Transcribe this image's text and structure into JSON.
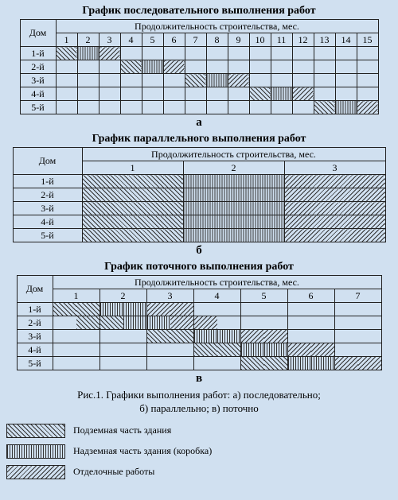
{
  "patternStyles": {
    "p1": "diagonal-45",
    "p2": "vertical",
    "p3": "diagonal-135"
  },
  "colors": {
    "background": "#d0e0f0",
    "border": "#222222",
    "pattern": "#333333"
  },
  "typography": {
    "family": "Times New Roman",
    "titleSize": 14,
    "bodySize": 12,
    "captionSize": 13
  },
  "chartA": {
    "title": "График последовательного выполнения работ",
    "rowHeader": "Дом",
    "durHeader": "Продолжительность строительства, мес.",
    "months": [
      "1",
      "2",
      "3",
      "4",
      "5",
      "6",
      "7",
      "8",
      "9",
      "10",
      "11",
      "12",
      "13",
      "14",
      "15"
    ],
    "rows": [
      "1-й",
      "2-й",
      "3-й",
      "4-й",
      "5-й"
    ],
    "cells": [
      [
        "p1",
        "p2",
        "p3",
        "",
        "",
        "",
        "",
        "",
        "",
        "",
        "",
        "",
        "",
        "",
        ""
      ],
      [
        "",
        "",
        "",
        "p1",
        "p2",
        "p3",
        "",
        "",
        "",
        "",
        "",
        "",
        "",
        "",
        ""
      ],
      [
        "",
        "",
        "",
        "",
        "",
        "",
        "p1",
        "p2",
        "p3",
        "",
        "",
        "",
        "",
        "",
        ""
      ],
      [
        "",
        "",
        "",
        "",
        "",
        "",
        "",
        "",
        "",
        "p1",
        "p2",
        "p3",
        "",
        "",
        ""
      ],
      [
        "",
        "",
        "",
        "",
        "",
        "",
        "",
        "",
        "",
        "",
        "",
        "",
        "p1",
        "p2",
        "p3"
      ]
    ],
    "letter": "а"
  },
  "chartB": {
    "title": "График параллельного выполнения работ",
    "rowHeader": "Дом",
    "durHeader": "Продолжительность строительства, мес.",
    "months": [
      "1",
      "2",
      "3"
    ],
    "rows": [
      "1-й",
      "2-й",
      "3-й",
      "4-й",
      "5-й"
    ],
    "cells": [
      [
        "p1",
        "p2",
        "p3"
      ],
      [
        "p1",
        "p2",
        "p3"
      ],
      [
        "p1",
        "p2",
        "p3"
      ],
      [
        "p1",
        "p2",
        "p3"
      ],
      [
        "p1",
        "p2",
        "p3"
      ]
    ],
    "letter": "б"
  },
  "chartC": {
    "title": "График поточного выполнения работ",
    "rowHeader": "Дом",
    "durHeader": "Продолжительность строительства, мес.",
    "months": [
      "1",
      "2",
      "3",
      "4",
      "5",
      "6",
      "7"
    ],
    "rows": [
      "1-й",
      "2-й",
      "3-й",
      "4-й",
      "5-й"
    ],
    "halfCells": [
      [
        "p1",
        "p1",
        "p2",
        "p2",
        "p3",
        "p3",
        "",
        "",
        "",
        "",
        "",
        "",
        "",
        ""
      ],
      [
        "",
        "p1",
        "p1",
        "p2",
        "p2",
        "p3",
        "p3",
        "",
        "",
        "",
        "",
        "",
        "",
        ""
      ],
      [
        "",
        "",
        "",
        "",
        "p1",
        "p1",
        "p2",
        "p2",
        "p3",
        "p3",
        "",
        "",
        "",
        ""
      ],
      [
        "",
        "",
        "",
        "",
        "",
        "",
        "p1",
        "p1",
        "p2",
        "p2",
        "p3",
        "p3",
        "",
        ""
      ],
      [
        "",
        "",
        "",
        "",
        "",
        "",
        "",
        "",
        "p1",
        "p1",
        "p2",
        "p2",
        "p3",
        "p3"
      ]
    ],
    "letter": "в"
  },
  "caption": {
    "line1": "Рис.1. Графики выполнения работ: а) последовательно;",
    "line2": "б) параллельно; в) поточно"
  },
  "legend": [
    {
      "pattern": "p1",
      "label": "Подземная часть здания"
    },
    {
      "pattern": "p2",
      "label": "Надземная часть здания (коробка)"
    },
    {
      "pattern": "p3",
      "label": "Отделочные работы"
    }
  ]
}
